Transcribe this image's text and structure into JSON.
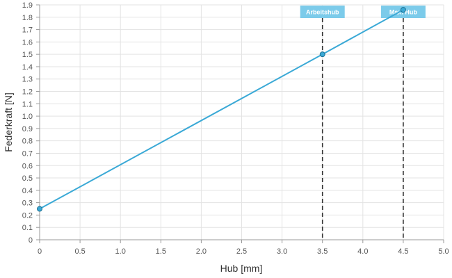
{
  "chart_data": {
    "type": "line",
    "xlabel": "Hub [mm]",
    "ylabel": "Federkraft [N]",
    "xlim": [
      0,
      5
    ],
    "ylim": [
      0,
      1.9
    ],
    "x_ticks": [
      "0",
      "0.5",
      "1.0",
      "1.5",
      "2.0",
      "2.5",
      "3.0",
      "3.5",
      "4.0",
      "4.5",
      "5.0"
    ],
    "y_ticks": [
      "0",
      "0.1",
      "0.2",
      "0.3",
      "0.4",
      "0.5",
      "0.6",
      "0.7",
      "0.8",
      "0.9",
      "1.0",
      "1.1",
      "1.2",
      "1.3",
      "1.4",
      "1.5",
      "1.6",
      "1.7",
      "1.8",
      "1.9"
    ],
    "grid": true,
    "series": [
      {
        "color": "#3aa9d6",
        "points": [
          {
            "x": 0,
            "y": 0.25
          },
          {
            "x": 3.5,
            "y": 1.5
          },
          {
            "x": 4.5,
            "y": 1.86
          }
        ]
      }
    ],
    "markers": [
      {
        "x": 3.5,
        "label": "Arbeitshub"
      },
      {
        "x": 4.5,
        "label": "Max. Hub"
      }
    ],
    "marker_label_color": "#7ccbea"
  }
}
